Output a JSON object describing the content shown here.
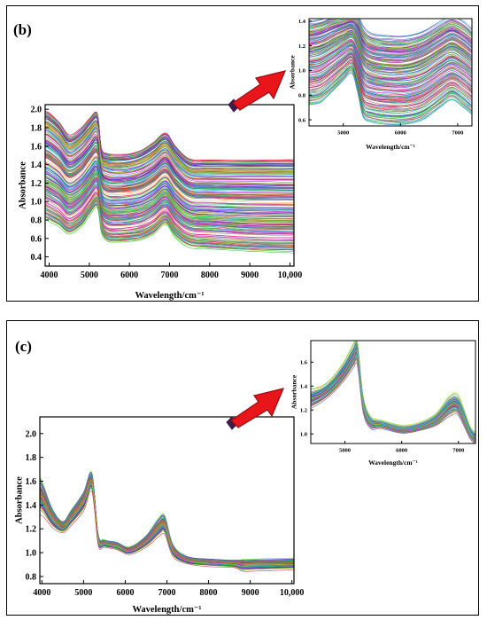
{
  "panels": [
    {
      "label": "(b)"
    },
    {
      "label": "(c)"
    }
  ],
  "colors": {
    "arrow": "#e8161b",
    "arrow_outline": "#9e0a0e",
    "arrow_base": "#3b1d4a"
  },
  "chart_data": [
    {
      "panel": "(b)",
      "role": "main",
      "type": "line",
      "title": "",
      "xlabel": "Wavelength/cm⁻¹",
      "ylabel": "Absorbance",
      "xlim": [
        3900,
        10100
      ],
      "ylim": [
        0.3,
        2.05
      ],
      "xticks": [
        4000,
        5000,
        6000,
        7000,
        8000,
        9000,
        10000
      ],
      "xtick_labels": [
        "4000",
        "5000",
        "6000",
        "7000",
        "8000",
        "9000",
        "10,000"
      ],
      "yticks": [
        0.4,
        0.6,
        0.8,
        1.0,
        1.2,
        1.4,
        1.6,
        1.8,
        2.0
      ],
      "ytick_labels": [
        "0.4",
        "0.6",
        "0.8",
        "1.0",
        "1.2",
        "1.4",
        "1.6",
        "1.8",
        "2.0"
      ],
      "grid": false,
      "legend": "none",
      "x": [
        3900,
        4000,
        4250,
        4500,
        4800,
        5000,
        5200,
        5300,
        5450,
        5700,
        6000,
        6300,
        6600,
        6900,
        7150,
        7500,
        8000,
        9000,
        10000,
        10100
      ],
      "envelope_lower": [
        0.8,
        0.78,
        0.72,
        0.64,
        0.72,
        0.84,
        0.93,
        0.66,
        0.56,
        0.55,
        0.56,
        0.58,
        0.64,
        0.74,
        0.6,
        0.5,
        0.48,
        0.45,
        0.44,
        0.44
      ],
      "envelope_upper": [
        1.98,
        1.96,
        1.86,
        1.72,
        1.8,
        1.9,
        1.96,
        1.58,
        1.52,
        1.51,
        1.52,
        1.56,
        1.64,
        1.74,
        1.6,
        1.46,
        1.45,
        1.45,
        1.45,
        1.45
      ],
      "typical": [
        1.45,
        1.42,
        1.32,
        1.2,
        1.3,
        1.42,
        1.58,
        1.04,
        0.98,
        0.96,
        0.98,
        1.02,
        1.12,
        1.3,
        1.06,
        0.94,
        0.92,
        0.9,
        0.9,
        0.9
      ],
      "series_count": 300
    },
    {
      "panel": "(b)",
      "role": "inset",
      "type": "line",
      "title": "",
      "xlabel": "Wavelength/cm⁻¹",
      "ylabel": "Absorbance",
      "xlim": [
        4400,
        7250
      ],
      "ylim": [
        0.55,
        1.42
      ],
      "xticks": [
        5000,
        6000,
        7000
      ],
      "xtick_labels": [
        "5000",
        "6000",
        "7000"
      ],
      "yticks": [
        0.6,
        0.8,
        1.0,
        1.2,
        1.4
      ],
      "ytick_labels": [
        "0.6",
        "0.8",
        "1.0",
        "1.2",
        "1.4"
      ],
      "grid": false,
      "legend": "none",
      "x": [
        4400,
        4600,
        4800,
        5000,
        5150,
        5250,
        5350,
        5500,
        5800,
        6100,
        6400,
        6700,
        6900,
        7100,
        7250
      ],
      "envelope_lower": [
        0.72,
        0.74,
        0.82,
        0.92,
        0.98,
        0.82,
        0.62,
        0.58,
        0.56,
        0.56,
        0.6,
        0.7,
        0.76,
        0.7,
        0.64
      ],
      "envelope_upper": [
        1.4,
        1.42,
        1.45,
        1.47,
        1.48,
        1.46,
        1.36,
        1.3,
        1.28,
        1.28,
        1.32,
        1.4,
        1.44,
        1.4,
        1.34
      ],
      "typical": [
        1.02,
        1.06,
        1.14,
        1.24,
        1.32,
        1.26,
        0.94,
        0.9,
        0.88,
        0.88,
        0.92,
        1.02,
        1.1,
        1.04,
        0.96
      ],
      "series_count": 300
    },
    {
      "panel": "(c)",
      "role": "main",
      "type": "line",
      "title": "",
      "xlabel": "Wavelength/cm⁻¹",
      "ylabel": "Absorbance",
      "xlim": [
        3950,
        10050
      ],
      "ylim": [
        0.74,
        2.14
      ],
      "xticks": [
        4000,
        5000,
        6000,
        7000,
        8000,
        9000,
        10000
      ],
      "xtick_labels": [
        "4000",
        "5000",
        "6000",
        "7000",
        "8000",
        "9000",
        "10,000"
      ],
      "yticks": [
        0.8,
        1.0,
        1.2,
        1.4,
        1.6,
        1.8,
        2.0
      ],
      "ytick_labels": [
        "0.8",
        "1.0",
        "1.2",
        "1.4",
        "1.6",
        "1.8",
        "2.0"
      ],
      "grid": false,
      "legend": "none",
      "x": [
        3950,
        4050,
        4250,
        4500,
        4700,
        5000,
        5200,
        5350,
        5500,
        5800,
        6100,
        6500,
        6800,
        6950,
        7150,
        7500,
        8000,
        8600,
        8800,
        9000,
        10000,
        10050
      ],
      "typical": [
        1.5,
        1.44,
        1.3,
        1.22,
        1.3,
        1.44,
        1.6,
        1.12,
        1.08,
        1.06,
        1.02,
        1.1,
        1.22,
        1.24,
        1.02,
        0.94,
        0.92,
        0.91,
        0.9,
        0.9,
        0.91,
        0.91
      ],
      "spread": [
        0.1,
        0.08,
        0.05,
        0.03,
        0.04,
        0.05,
        0.05,
        0.03,
        0.02,
        0.02,
        0.02,
        0.03,
        0.05,
        0.05,
        0.03,
        0.02,
        0.02,
        0.02,
        0.03,
        0.03,
        0.03,
        0.03
      ],
      "series_count": 120
    },
    {
      "panel": "(c)",
      "role": "inset",
      "type": "line",
      "title": "",
      "xlabel": "Wavelength/cm⁻¹",
      "ylabel": "Absorbance",
      "xlim": [
        4400,
        7300
      ],
      "ylim": [
        0.92,
        1.78
      ],
      "xticks": [
        5000,
        6000,
        7000
      ],
      "xtick_labels": [
        "5000",
        "6000",
        "7000"
      ],
      "yticks": [
        1.0,
        1.2,
        1.4,
        1.6
      ],
      "ytick_labels": [
        "1.0",
        "1.2",
        "1.4",
        "1.6"
      ],
      "grid": false,
      "legend": "none",
      "x": [
        4400,
        4600,
        4800,
        5000,
        5150,
        5220,
        5320,
        5450,
        5650,
        6000,
        6300,
        6600,
        6850,
        7000,
        7200,
        7300
      ],
      "typical": [
        1.3,
        1.34,
        1.42,
        1.54,
        1.66,
        1.68,
        1.26,
        1.1,
        1.08,
        1.04,
        1.06,
        1.12,
        1.24,
        1.24,
        1.02,
        0.97
      ],
      "spread": [
        0.05,
        0.04,
        0.04,
        0.05,
        0.06,
        0.06,
        0.04,
        0.03,
        0.02,
        0.02,
        0.02,
        0.03,
        0.05,
        0.05,
        0.03,
        0.03
      ],
      "series_count": 120
    }
  ]
}
